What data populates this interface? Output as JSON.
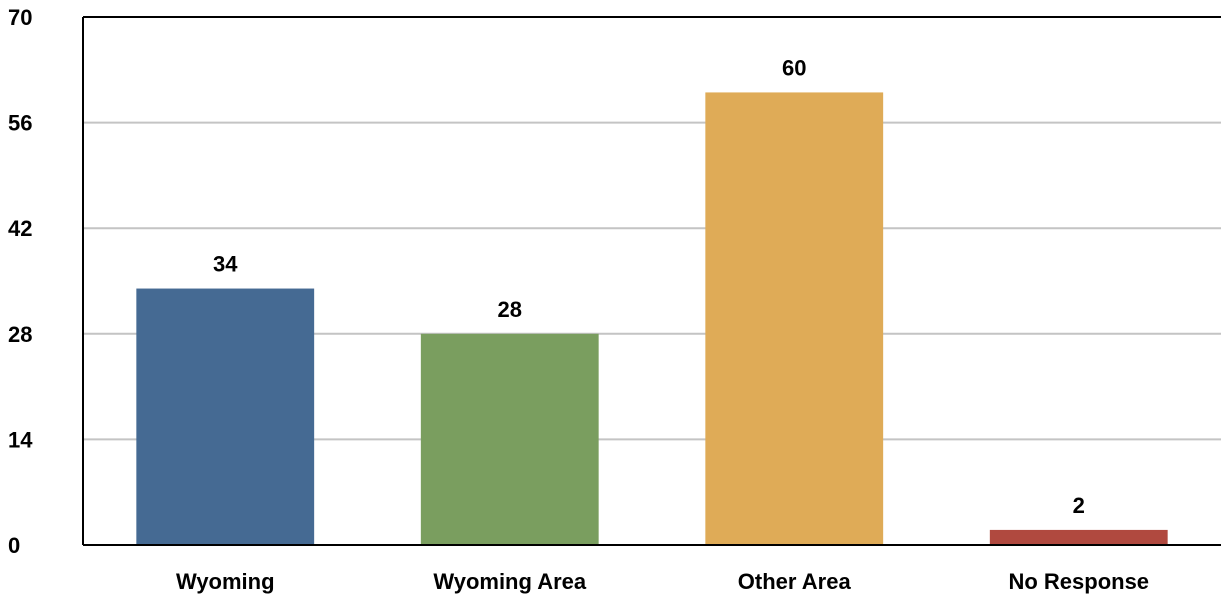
{
  "chart_data": {
    "type": "bar",
    "categories": [
      "Wyoming",
      "Wyoming Area",
      "Other Area",
      "No Response"
    ],
    "values": [
      34,
      28,
      60,
      2
    ],
    "colors": [
      "#456a93",
      "#7a9e5f",
      "#dfab57",
      "#b0493f"
    ],
    "ylim": [
      0,
      70
    ],
    "yticks": [
      "0",
      "14",
      "28",
      "42",
      "56",
      "70"
    ],
    "data_labels": [
      "34",
      "28",
      "60",
      "2"
    ],
    "grid": true,
    "legend": "none",
    "title": "",
    "xlabel": "",
    "ylabel": ""
  }
}
